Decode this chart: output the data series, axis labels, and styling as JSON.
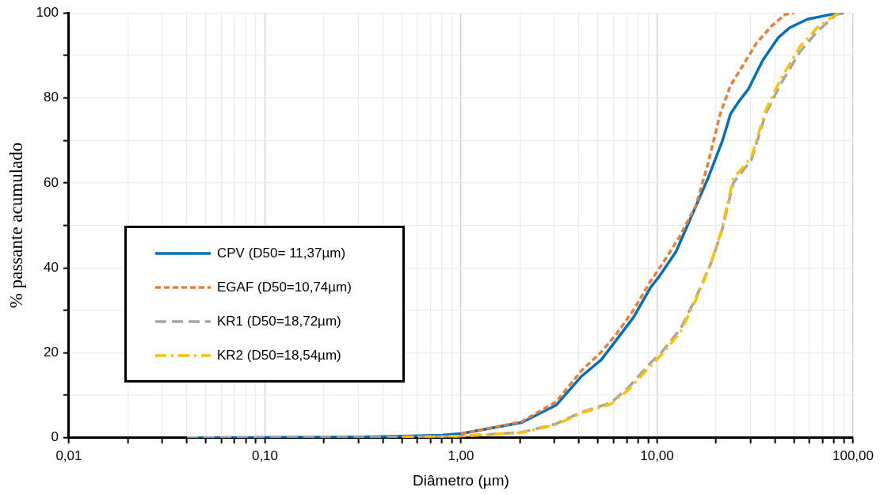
{
  "chart_data": {
    "type": "line",
    "xlabel": "Diâmetro (µm)",
    "ylabel": "% passante acumulado",
    "log": "x",
    "grid": true,
    "legend": "left",
    "marker": "none",
    "xlim": [
      0.01,
      100
    ],
    "ylim": [
      0,
      100
    ],
    "xticks": [
      {
        "value": 0.01,
        "label": "0,01"
      },
      {
        "value": 0.02,
        "label": null
      },
      {
        "value": 0.03,
        "label": null
      },
      {
        "value": 0.04,
        "label": null
      },
      {
        "value": 0.05,
        "label": null
      },
      {
        "value": 0.06,
        "label": null
      },
      {
        "value": 0.07,
        "label": null
      },
      {
        "value": 0.08,
        "label": null
      },
      {
        "value": 0.09,
        "label": null
      },
      {
        "value": 0.1,
        "label": "0,10"
      },
      {
        "value": 0.2,
        "label": null
      },
      {
        "value": 0.3,
        "label": null
      },
      {
        "value": 0.4,
        "label": null
      },
      {
        "value": 0.5,
        "label": null
      },
      {
        "value": 0.6,
        "label": null
      },
      {
        "value": 0.7,
        "label": null
      },
      {
        "value": 0.8,
        "label": null
      },
      {
        "value": 0.9,
        "label": null
      },
      {
        "value": 1,
        "label": "1,00"
      },
      {
        "value": 2,
        "label": null
      },
      {
        "value": 3,
        "label": null
      },
      {
        "value": 4,
        "label": null
      },
      {
        "value": 5,
        "label": null
      },
      {
        "value": 6,
        "label": null
      },
      {
        "value": 7,
        "label": null
      },
      {
        "value": 8,
        "label": null
      },
      {
        "value": 9,
        "label": null
      },
      {
        "value": 10,
        "label": "10,00"
      },
      {
        "value": 20,
        "label": null
      },
      {
        "value": 30,
        "label": null
      },
      {
        "value": 40,
        "label": null
      },
      {
        "value": 50,
        "label": null
      },
      {
        "value": 60,
        "label": null
      },
      {
        "value": 70,
        "label": null
      },
      {
        "value": 80,
        "label": null
      },
      {
        "value": 90,
        "label": null
      },
      {
        "value": 100,
        "label": "100,00"
      }
    ],
    "yticks": [
      0,
      {
        "value": 10,
        "label": null
      },
      20,
      {
        "value": 30,
        "label": null
      },
      40,
      {
        "value": 50,
        "label": null
      },
      60,
      {
        "value": 70,
        "label": null
      },
      80,
      {
        "value": 90,
        "label": null
      },
      100
    ],
    "series": [
      {
        "name": "CPV (D50= 11,37µm)",
        "color": "#0070c0",
        "line_style": "solid",
        "x": [
          0.04,
          0.1,
          0.3,
          0.5,
          0.8,
          1,
          2.04,
          3.06,
          4.1,
          5.2,
          6.2,
          7.6,
          9.3,
          10.2,
          12.5,
          18.1,
          21.6,
          23.7,
          26,
          29.2,
          34.6,
          41.6,
          47.5,
          58.5,
          76.7,
          90
        ],
        "values": [
          0,
          0.1,
          0.2,
          0.4,
          0.6,
          1,
          3.6,
          7.7,
          14.4,
          18.4,
          23,
          28.4,
          35.5,
          37.8,
          43.8,
          60.8,
          70,
          76.2,
          79,
          82,
          88.8,
          94.2,
          96.5,
          98.5,
          99.6,
          100
        ]
      },
      {
        "name": "EGAF (D50=10,74µm)",
        "color": "#ed7d31",
        "line_style": "dotted",
        "x": [
          1,
          2.04,
          3.06,
          4.1,
          5.2,
          6.2,
          7.6,
          9.3,
          10.5,
          13,
          15.8,
          18.1,
          21,
          23.7,
          27.3,
          32.2,
          38.4,
          45,
          50
        ],
        "values": [
          0.9,
          3.8,
          8.5,
          15.7,
          20.2,
          24.4,
          30.1,
          37,
          40.5,
          47.2,
          54.7,
          64.1,
          76.2,
          82.9,
          87.5,
          92.9,
          96.9,
          99.6,
          100
        ]
      },
      {
        "name": "KR1 (D50=18,72µm)",
        "color": "#a5a5a5",
        "line_style": "dashed",
        "x": [
          0.04,
          0.1,
          0.3,
          0.5,
          0.8,
          1,
          2.04,
          3.06,
          4.1,
          5.8,
          7.1,
          9.3,
          10.5,
          13.2,
          15.8,
          18.8,
          21.4,
          24.5,
          30.3,
          35.8,
          42.3,
          53.5,
          65.6,
          82,
          90
        ],
        "values": [
          0,
          0.1,
          0.1,
          0.2,
          0.3,
          0.4,
          1.3,
          3.3,
          6,
          8.2,
          11.7,
          17.7,
          20,
          25.7,
          33,
          41,
          48.6,
          60,
          65.4,
          76.2,
          82.9,
          90.8,
          95.6,
          99.6,
          100
        ]
      },
      {
        "name": "KR2 (D50=18,54µm)",
        "color": "#ffc000",
        "line_style": "dashdot",
        "x": [
          0.5,
          0.8,
          1,
          2.04,
          3.06,
          4.1,
          5.8,
          7.1,
          9.3,
          10.5,
          13.2,
          15.8,
          18.8,
          21.4,
          24.5,
          30.3,
          35.8,
          42.3,
          53.5,
          65.6,
          82,
          90
        ],
        "values": [
          0.2,
          0.3,
          0.4,
          1.2,
          3.1,
          5.8,
          7.9,
          11.2,
          17,
          19.5,
          25,
          32.5,
          41,
          49,
          61,
          66,
          77,
          84,
          92,
          96.5,
          99.7,
          100
        ]
      }
    ]
  }
}
